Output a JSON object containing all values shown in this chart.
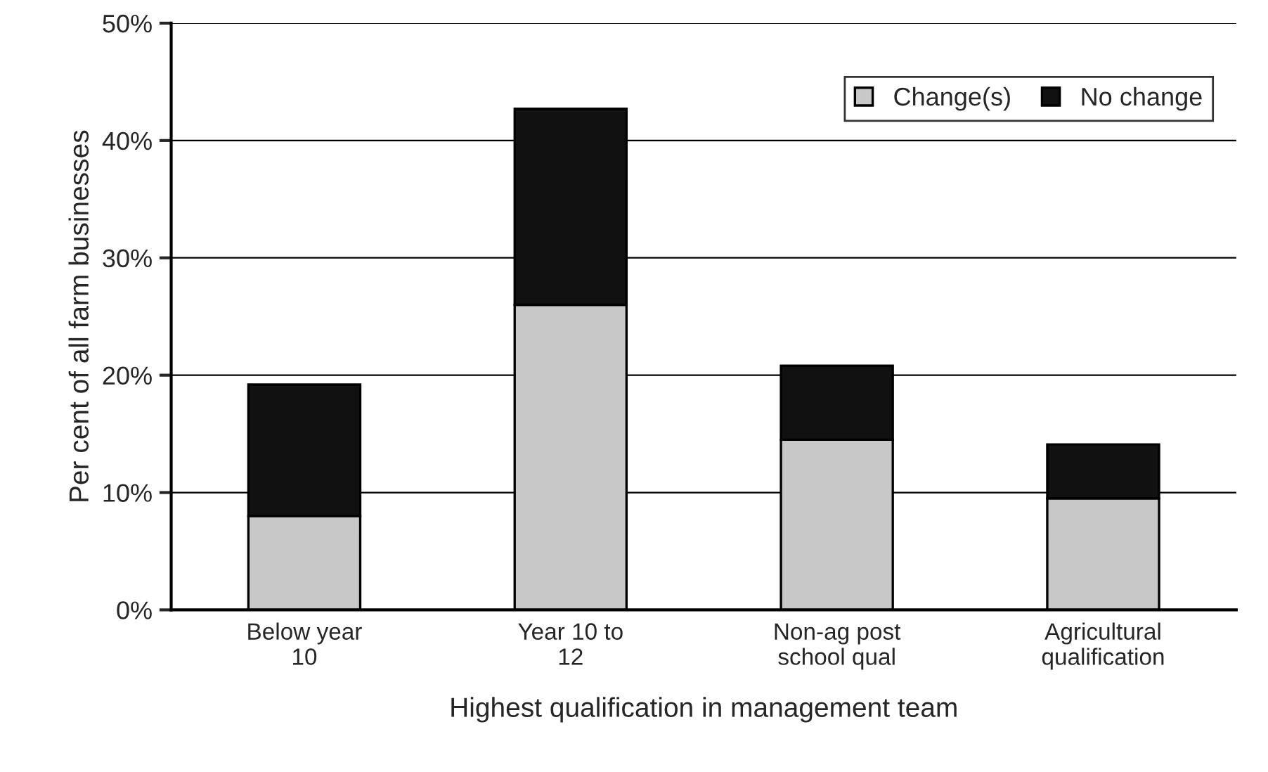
{
  "chart_data": {
    "type": "bar",
    "stacked": true,
    "xlabel": "Highest qualification in management team",
    "ylabel": "Per cent of all farm businesses",
    "categories": [
      "Below year\n10",
      "Year 10 to\n12",
      "Non-ag post\nschool qual",
      "Agricultural\nqualification"
    ],
    "series": [
      {
        "name": "Change(s)",
        "color": "#c8c8c8",
        "values": [
          8,
          26,
          14.5,
          9.5
        ]
      },
      {
        "name": "No change",
        "color": "#111111",
        "values": [
          11.2,
          16.7,
          6.3,
          4.6
        ]
      }
    ],
    "ylim": [
      0,
      50
    ],
    "yticks": [
      {
        "value": 0,
        "label": "0%"
      },
      {
        "value": 10,
        "label": "10%"
      },
      {
        "value": 20,
        "label": "20%"
      },
      {
        "value": 30,
        "label": "30%"
      },
      {
        "value": 40,
        "label": "40%"
      },
      {
        "value": 50,
        "label": "50%"
      }
    ],
    "grid": "y",
    "legend": "top right"
  }
}
